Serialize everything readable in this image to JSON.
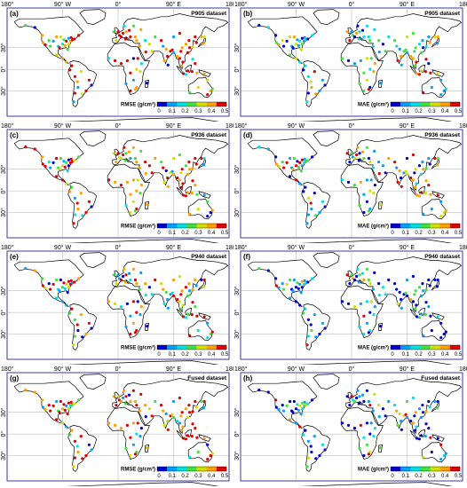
{
  "axis_labels": {
    "lon": [
      "90° W",
      "0°",
      "90° E"
    ],
    "lon_edge_left": "180°",
    "lon_edge_right": "180°",
    "lat": [
      "30°",
      "0°",
      "30°"
    ]
  },
  "colorbar": {
    "ticks": [
      "0",
      "0.1",
      "0.2",
      "0.3",
      "0.4",
      "0.5"
    ],
    "colors": [
      "#0000d0",
      "#00a0ff",
      "#00e0e0",
      "#40e040",
      "#d0e000",
      "#ffa000",
      "#e00000"
    ]
  },
  "panels": [
    {
      "letter": "(a)",
      "dataset": "P905 dataset",
      "metric": "RMSE (g/cm³)",
      "bias": "high"
    },
    {
      "letter": "(b)",
      "dataset": "P905 dataset",
      "metric": "MAE (g/cm³)",
      "bias": "mid"
    },
    {
      "letter": "(c)",
      "dataset": "P936 dataset",
      "metric": "RMSE (g/cm³)",
      "bias": "high"
    },
    {
      "letter": "(d)",
      "dataset": "P936 dataset",
      "metric": "MAE (g/cm³)",
      "bias": "mid"
    },
    {
      "letter": "(e)",
      "dataset": "P940 dataset",
      "metric": "RMSE (g/cm³)",
      "bias": "midhigh"
    },
    {
      "letter": "(f)",
      "dataset": "P940 dataset",
      "metric": "MAE (g/cm³)",
      "bias": "low"
    },
    {
      "letter": "(g)",
      "dataset": "Fused dataset",
      "metric": "RMSE (g/cm³)",
      "bias": "high"
    },
    {
      "letter": "(h)",
      "dataset": "Fused dataset",
      "metric": "MAE (g/cm³)",
      "bias": "low"
    }
  ],
  "continent_color": "#000000",
  "frame_color": "#3a3aa0"
}
